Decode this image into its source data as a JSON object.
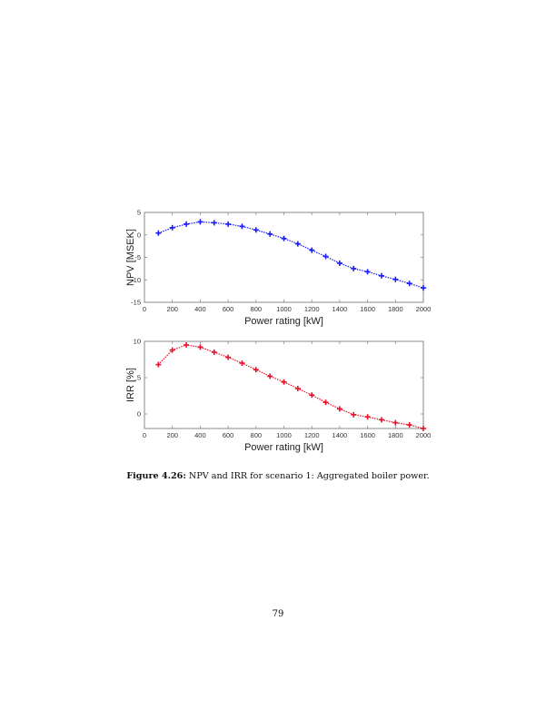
{
  "figure": {
    "caption_label": "Figure 4.26:",
    "caption_text": " NPV and IRR for scenario 1: Aggregated boiler power."
  },
  "page": {
    "number": "79"
  },
  "chart_data": [
    {
      "type": "line",
      "title": "",
      "xlabel": "Power rating [kW]",
      "ylabel": "NPV [MSEK]",
      "xlim": [
        0,
        2000
      ],
      "ylim": [
        -15,
        5
      ],
      "xticks": [
        0,
        200,
        400,
        600,
        800,
        1000,
        1200,
        1400,
        1600,
        1800,
        2000
      ],
      "yticks": [
        -15,
        -10,
        -5,
        0,
        5
      ],
      "grid": false,
      "legend": null,
      "color": "#1a1aff",
      "marker": "+",
      "linestyle": "dotted",
      "x": [
        100,
        200,
        300,
        400,
        500,
        600,
        700,
        800,
        900,
        1000,
        1100,
        1200,
        1300,
        1400,
        1500,
        1600,
        1700,
        1800,
        1900,
        2000
      ],
      "values": [
        0.4,
        1.6,
        2.4,
        2.9,
        2.7,
        2.4,
        1.9,
        1.1,
        0.2,
        -0.8,
        -2.0,
        -3.4,
        -4.8,
        -6.3,
        -7.5,
        -8.2,
        -9.1,
        -9.9,
        -10.8,
        -11.8
      ]
    },
    {
      "type": "line",
      "title": "",
      "xlabel": "Power rating [kW]",
      "ylabel": "IRR [%]",
      "xlim": [
        0,
        2000
      ],
      "ylim": [
        -2,
        10
      ],
      "xticks": [
        0,
        200,
        400,
        600,
        800,
        1000,
        1200,
        1400,
        1600,
        1800,
        2000
      ],
      "yticks": [
        0,
        5,
        10
      ],
      "grid": false,
      "legend": null,
      "color": "#e8102a",
      "marker": "+",
      "linestyle": "dotted",
      "x": [
        100,
        200,
        300,
        400,
        500,
        600,
        700,
        800,
        900,
        1000,
        1100,
        1200,
        1300,
        1400,
        1500,
        1600,
        1700,
        1800,
        1900,
        2000
      ],
      "values": [
        6.8,
        8.8,
        9.5,
        9.2,
        8.5,
        7.8,
        7.0,
        6.1,
        5.2,
        4.4,
        3.5,
        2.6,
        1.6,
        0.7,
        -0.1,
        -0.4,
        -0.8,
        -1.2,
        -1.5,
        -2.0
      ]
    }
  ]
}
